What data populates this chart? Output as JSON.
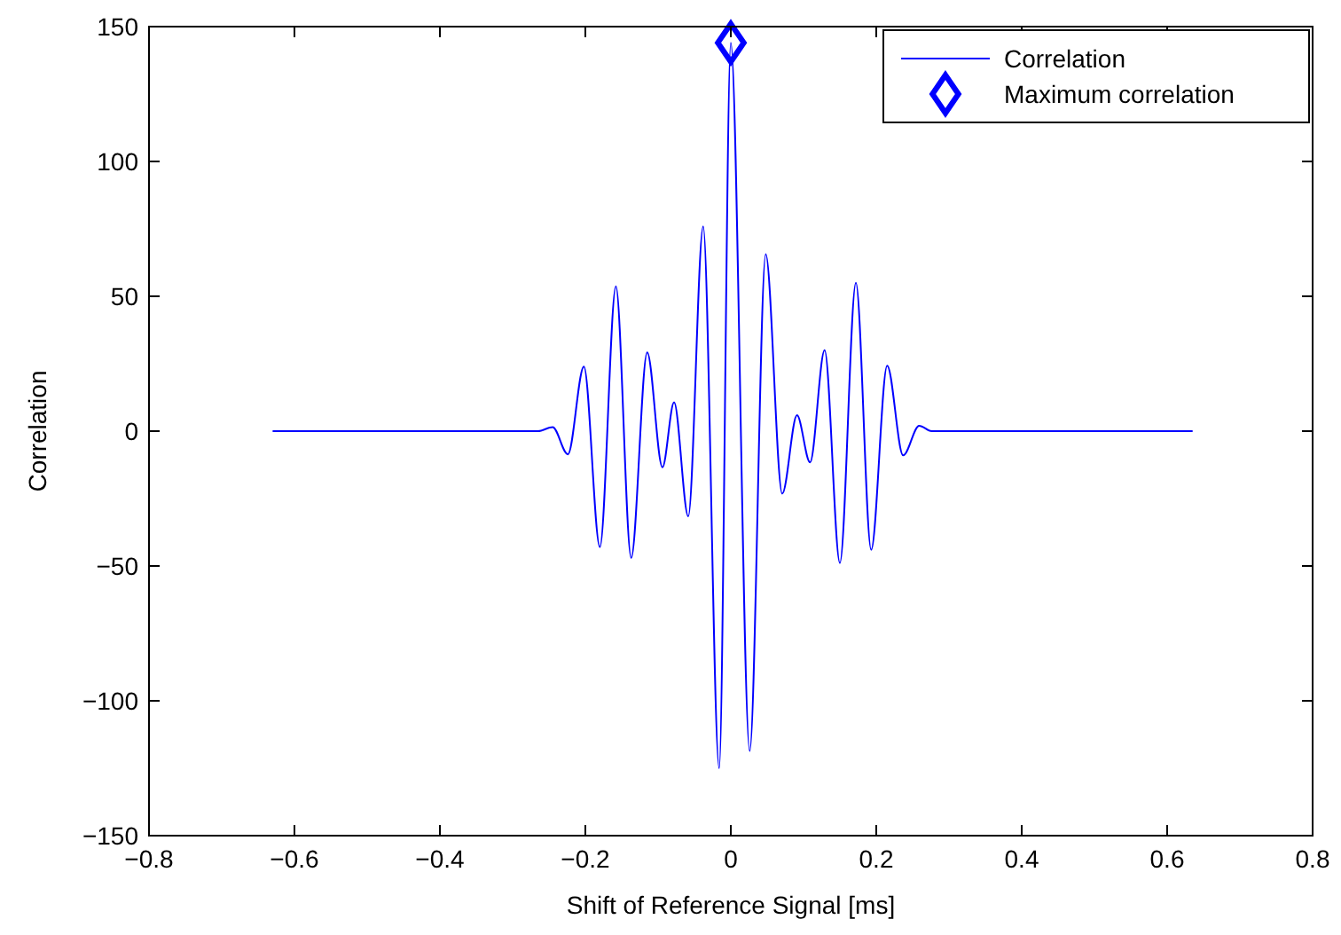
{
  "chart_data": {
    "type": "line",
    "xlabel": "Shift of Reference Signal [ms]",
    "ylabel": "Correlation",
    "xlim": [
      -0.8,
      0.8
    ],
    "xticks": [
      {
        "value": -0.8,
        "label": "−0.8"
      },
      {
        "value": -0.6,
        "label": "−0.6"
      },
      {
        "value": -0.4,
        "label": "−0.4"
      },
      {
        "value": -0.2,
        "label": "−0.2"
      },
      0,
      0.2,
      0.4,
      0.6,
      0.8
    ],
    "ylim": [
      -150,
      150
    ],
    "yticks": [
      {
        "value": -150,
        "label": "−150"
      },
      {
        "value": -100,
        "label": "−100"
      },
      {
        "value": -50,
        "label": "−50"
      },
      0,
      50,
      100,
      150
    ],
    "grid": false,
    "legend": "top right",
    "series": [
      {
        "name": "Correlation",
        "color": "#0000ff",
        "marker": "none",
        "x": [
          -0.63,
          -0.4,
          -0.265,
          -0.245,
          -0.224,
          -0.202,
          -0.18,
          -0.158,
          -0.137,
          -0.115,
          -0.094,
          -0.078,
          -0.0585,
          -0.038,
          -0.016,
          0,
          0.026,
          0.048,
          0.0707,
          0.091,
          0.109,
          0.129,
          0.15,
          0.172,
          0.193,
          0.215,
          0.237,
          0.259,
          0.276,
          0.4,
          0.635
        ],
        "values": [
          0,
          0,
          0,
          1.5,
          -8.6,
          23.9,
          -43,
          53.7,
          -47,
          29.2,
          -13.4,
          10.7,
          -31.6,
          75.9,
          -125,
          144,
          -118.6,
          65.6,
          -23.2,
          5.9,
          -11.6,
          30,
          -48.9,
          55,
          -44,
          24.3,
          -9,
          2,
          0,
          0,
          0
        ]
      },
      {
        "name": "Maximum correlation",
        "color": "#0000ff",
        "type": "scatter",
        "marker": "diamond",
        "x": [
          0
        ],
        "values": [
          144
        ]
      }
    ]
  }
}
